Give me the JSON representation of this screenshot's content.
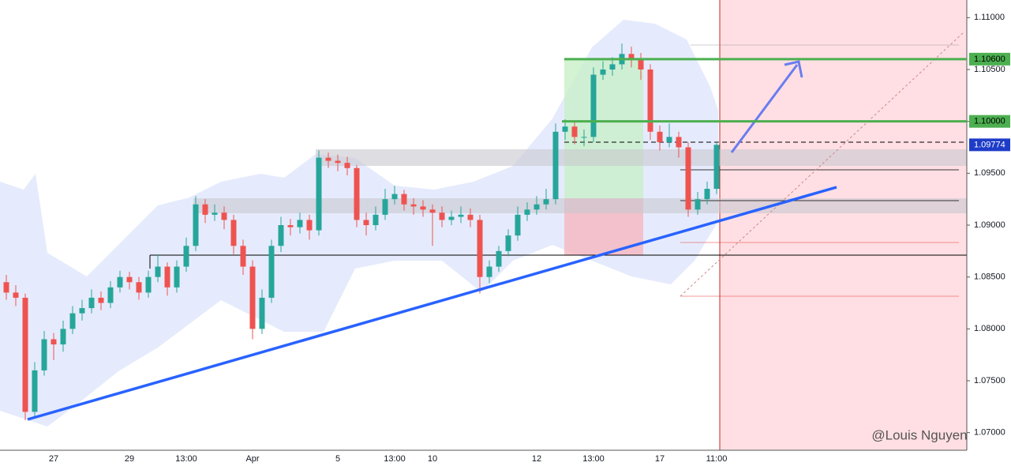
{
  "chart_data": {
    "type": "candlestick",
    "categories": [
      null,
      null,
      null,
      null,
      null,
      "27",
      null,
      null,
      null,
      null,
      null,
      null,
      null,
      "29",
      null,
      null,
      null,
      null,
      null,
      "13:00",
      null,
      null,
      null,
      null,
      null,
      null,
      "Apr",
      null,
      null,
      null,
      null,
      null,
      null,
      null,
      null,
      "5",
      null,
      null,
      null,
      null,
      null,
      "13:00",
      null,
      null,
      null,
      "10",
      null,
      null,
      null,
      null,
      null,
      null,
      null,
      null,
      null,
      null,
      "12",
      null,
      null,
      null,
      null,
      null,
      "13:00",
      null,
      null,
      null,
      null,
      null,
      null,
      "17",
      null,
      null,
      null,
      null,
      null,
      "11:00"
    ],
    "open": [
      1.0845,
      1.0835,
      1.083,
      1.072,
      1.076,
      1.079,
      1.0785,
      1.08,
      1.0815,
      1.082,
      1.083,
      1.0825,
      1.084,
      1.085,
      1.0845,
      1.0835,
      1.085,
      1.086,
      1.084,
      1.086,
      1.088,
      1.092,
      1.091,
      1.0912,
      1.0905,
      1.088,
      1.086,
      1.08,
      1.083,
      1.088,
      1.09,
      1.0898,
      1.0905,
      1.0895,
      1.0965,
      1.0962,
      1.096,
      1.0955,
      1.0905,
      1.09,
      1.091,
      1.0925,
      1.093,
      1.092,
      1.0918,
      1.0915,
      1.0912,
      1.0905,
      1.0908,
      1.091,
      1.0905,
      1.085,
      1.086,
      1.0875,
      1.089,
      1.091,
      1.0915,
      1.092,
      1.0925,
      1.099,
      1.0995,
      1.0985,
      1.0985,
      1.1045,
      1.105,
      1.1055,
      1.1065,
      1.106,
      1.105,
      1.099,
      1.098,
      1.0985,
      1.0975,
      1.0915,
      1.0925,
      1.0935
    ],
    "high": [
      1.0852,
      1.0842,
      1.0834,
      1.0768,
      1.0798,
      1.0796,
      1.0808,
      1.0822,
      1.0828,
      1.0838,
      1.0836,
      1.0846,
      1.0856,
      1.0855,
      1.085,
      1.0856,
      1.0872,
      1.0864,
      1.0866,
      1.0888,
      1.0928,
      1.0925,
      1.092,
      1.0918,
      1.091,
      1.0886,
      1.0866,
      1.0838,
      1.0886,
      1.0908,
      1.0906,
      1.0912,
      1.091,
      1.0972,
      1.097,
      1.0968,
      1.0966,
      1.0958,
      1.0912,
      1.0918,
      1.0935,
      1.0938,
      1.0934,
      1.0926,
      1.0924,
      1.092,
      1.0918,
      1.0914,
      1.0918,
      1.0916,
      1.091,
      1.0866,
      1.088,
      1.0896,
      1.0918,
      1.0922,
      1.0928,
      1.0935,
      1.0998,
      1.1002,
      1.1,
      1.0992,
      1.1052,
      1.1058,
      1.1062,
      1.1075,
      1.1072,
      1.1066,
      1.1055,
      1.0996,
      1.0998,
      1.099,
      1.098,
      1.0932,
      1.0942,
      1.098
    ],
    "low": [
      1.0828,
      1.0822,
      1.0712,
      1.0715,
      1.0755,
      1.077,
      1.0778,
      1.0795,
      1.0808,
      1.0815,
      1.0818,
      1.082,
      1.0835,
      1.0838,
      1.0828,
      1.083,
      1.0845,
      1.0832,
      1.0835,
      1.0855,
      1.0875,
      1.0902,
      1.0904,
      1.0896,
      1.0872,
      1.0852,
      1.079,
      1.0795,
      1.0825,
      1.0874,
      1.089,
      1.0892,
      1.0886,
      1.089,
      1.0955,
      1.0952,
      1.0948,
      1.0898,
      1.089,
      1.0895,
      1.0905,
      1.092,
      1.0914,
      1.091,
      1.0908,
      1.088,
      1.0898,
      1.09,
      1.0902,
      1.0898,
      1.0834,
      1.0844,
      1.0855,
      1.087,
      1.0885,
      1.0904,
      1.091,
      1.0915,
      1.092,
      1.0982,
      1.0978,
      1.0976,
      1.098,
      1.104,
      1.1044,
      1.105,
      1.1052,
      1.104,
      1.0982,
      1.0972,
      1.0975,
      1.0965,
      1.0908,
      1.091,
      1.092,
      1.093
    ],
    "close": [
      1.0835,
      1.083,
      1.072,
      1.076,
      1.079,
      1.0785,
      1.08,
      1.0815,
      1.082,
      1.083,
      1.0825,
      1.084,
      1.085,
      1.0845,
      1.0835,
      1.085,
      1.086,
      1.084,
      1.086,
      1.088,
      1.092,
      1.091,
      1.0912,
      1.0905,
      1.088,
      1.086,
      1.08,
      1.083,
      1.088,
      1.09,
      1.0898,
      1.0905,
      1.0895,
      1.0965,
      1.0962,
      1.096,
      1.0955,
      1.0905,
      1.09,
      1.091,
      1.0925,
      1.093,
      1.092,
      1.0918,
      1.0915,
      1.0912,
      1.0905,
      1.0908,
      1.091,
      1.0905,
      1.085,
      1.086,
      1.0875,
      1.089,
      1.091,
      1.0915,
      1.092,
      1.0925,
      1.099,
      1.0995,
      1.0985,
      1.0985,
      1.1045,
      1.105,
      1.1055,
      1.1065,
      1.106,
      1.105,
      1.099,
      1.098,
      1.0985,
      1.0975,
      1.0915,
      1.0925,
      1.0935,
      1.09774
    ],
    "up_color": "#26a69a",
    "down_color": "#ef5350",
    "ylim": [
      1.0683,
      1.1117
    ],
    "yticks": [
      {
        "value": 1.11,
        "label": "1.11000"
      },
      {
        "value": 1.105,
        "label": "1.10500"
      },
      {
        "value": 1.1,
        "label": "1.10000"
      },
      {
        "value": 1.095,
        "label": "1.09500"
      },
      {
        "value": 1.09,
        "label": "1.09000"
      },
      {
        "value": 1.085,
        "label": "1.08500"
      },
      {
        "value": 1.08,
        "label": "1.08000"
      },
      {
        "value": 1.075,
        "label": "1.07500"
      },
      {
        "value": 1.07,
        "label": "1.07000"
      }
    ],
    "price_labels": [
      {
        "value": 1.106,
        "label": "1.10600",
        "color": "#4caf50"
      },
      {
        "value": 1.1,
        "label": "1.10000",
        "color": "#4caf50"
      },
      {
        "value": 1.09774,
        "label": "1.09774",
        "color": "#1e3cc8"
      }
    ],
    "watermark": "@Louis Nguyen"
  }
}
